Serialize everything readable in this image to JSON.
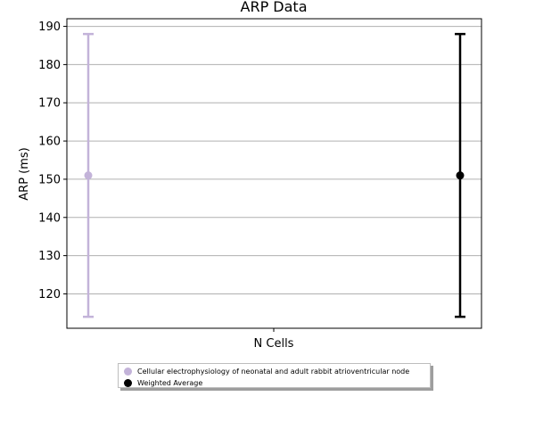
{
  "chart_data": {
    "type": "scatter",
    "title": "ARP Data",
    "xlabel": "N Cells",
    "ylabel": "ARP (ms)",
    "ylim": [
      111,
      192
    ],
    "yticks": [
      120,
      130,
      140,
      150,
      160,
      170,
      180,
      190
    ],
    "grid": "horizontal",
    "legend_placement": "below",
    "series": [
      {
        "name": "Cellular electrophysiology of neonatal and adult rabbit atrioventricular node",
        "color": "#c3b3d9",
        "position": "left",
        "y": 151,
        "error_low": 114,
        "error_high": 188
      },
      {
        "name": "Weighted Average",
        "color": "#000000",
        "position": "right",
        "y": 151,
        "error_low": 114,
        "error_high": 188
      }
    ]
  }
}
